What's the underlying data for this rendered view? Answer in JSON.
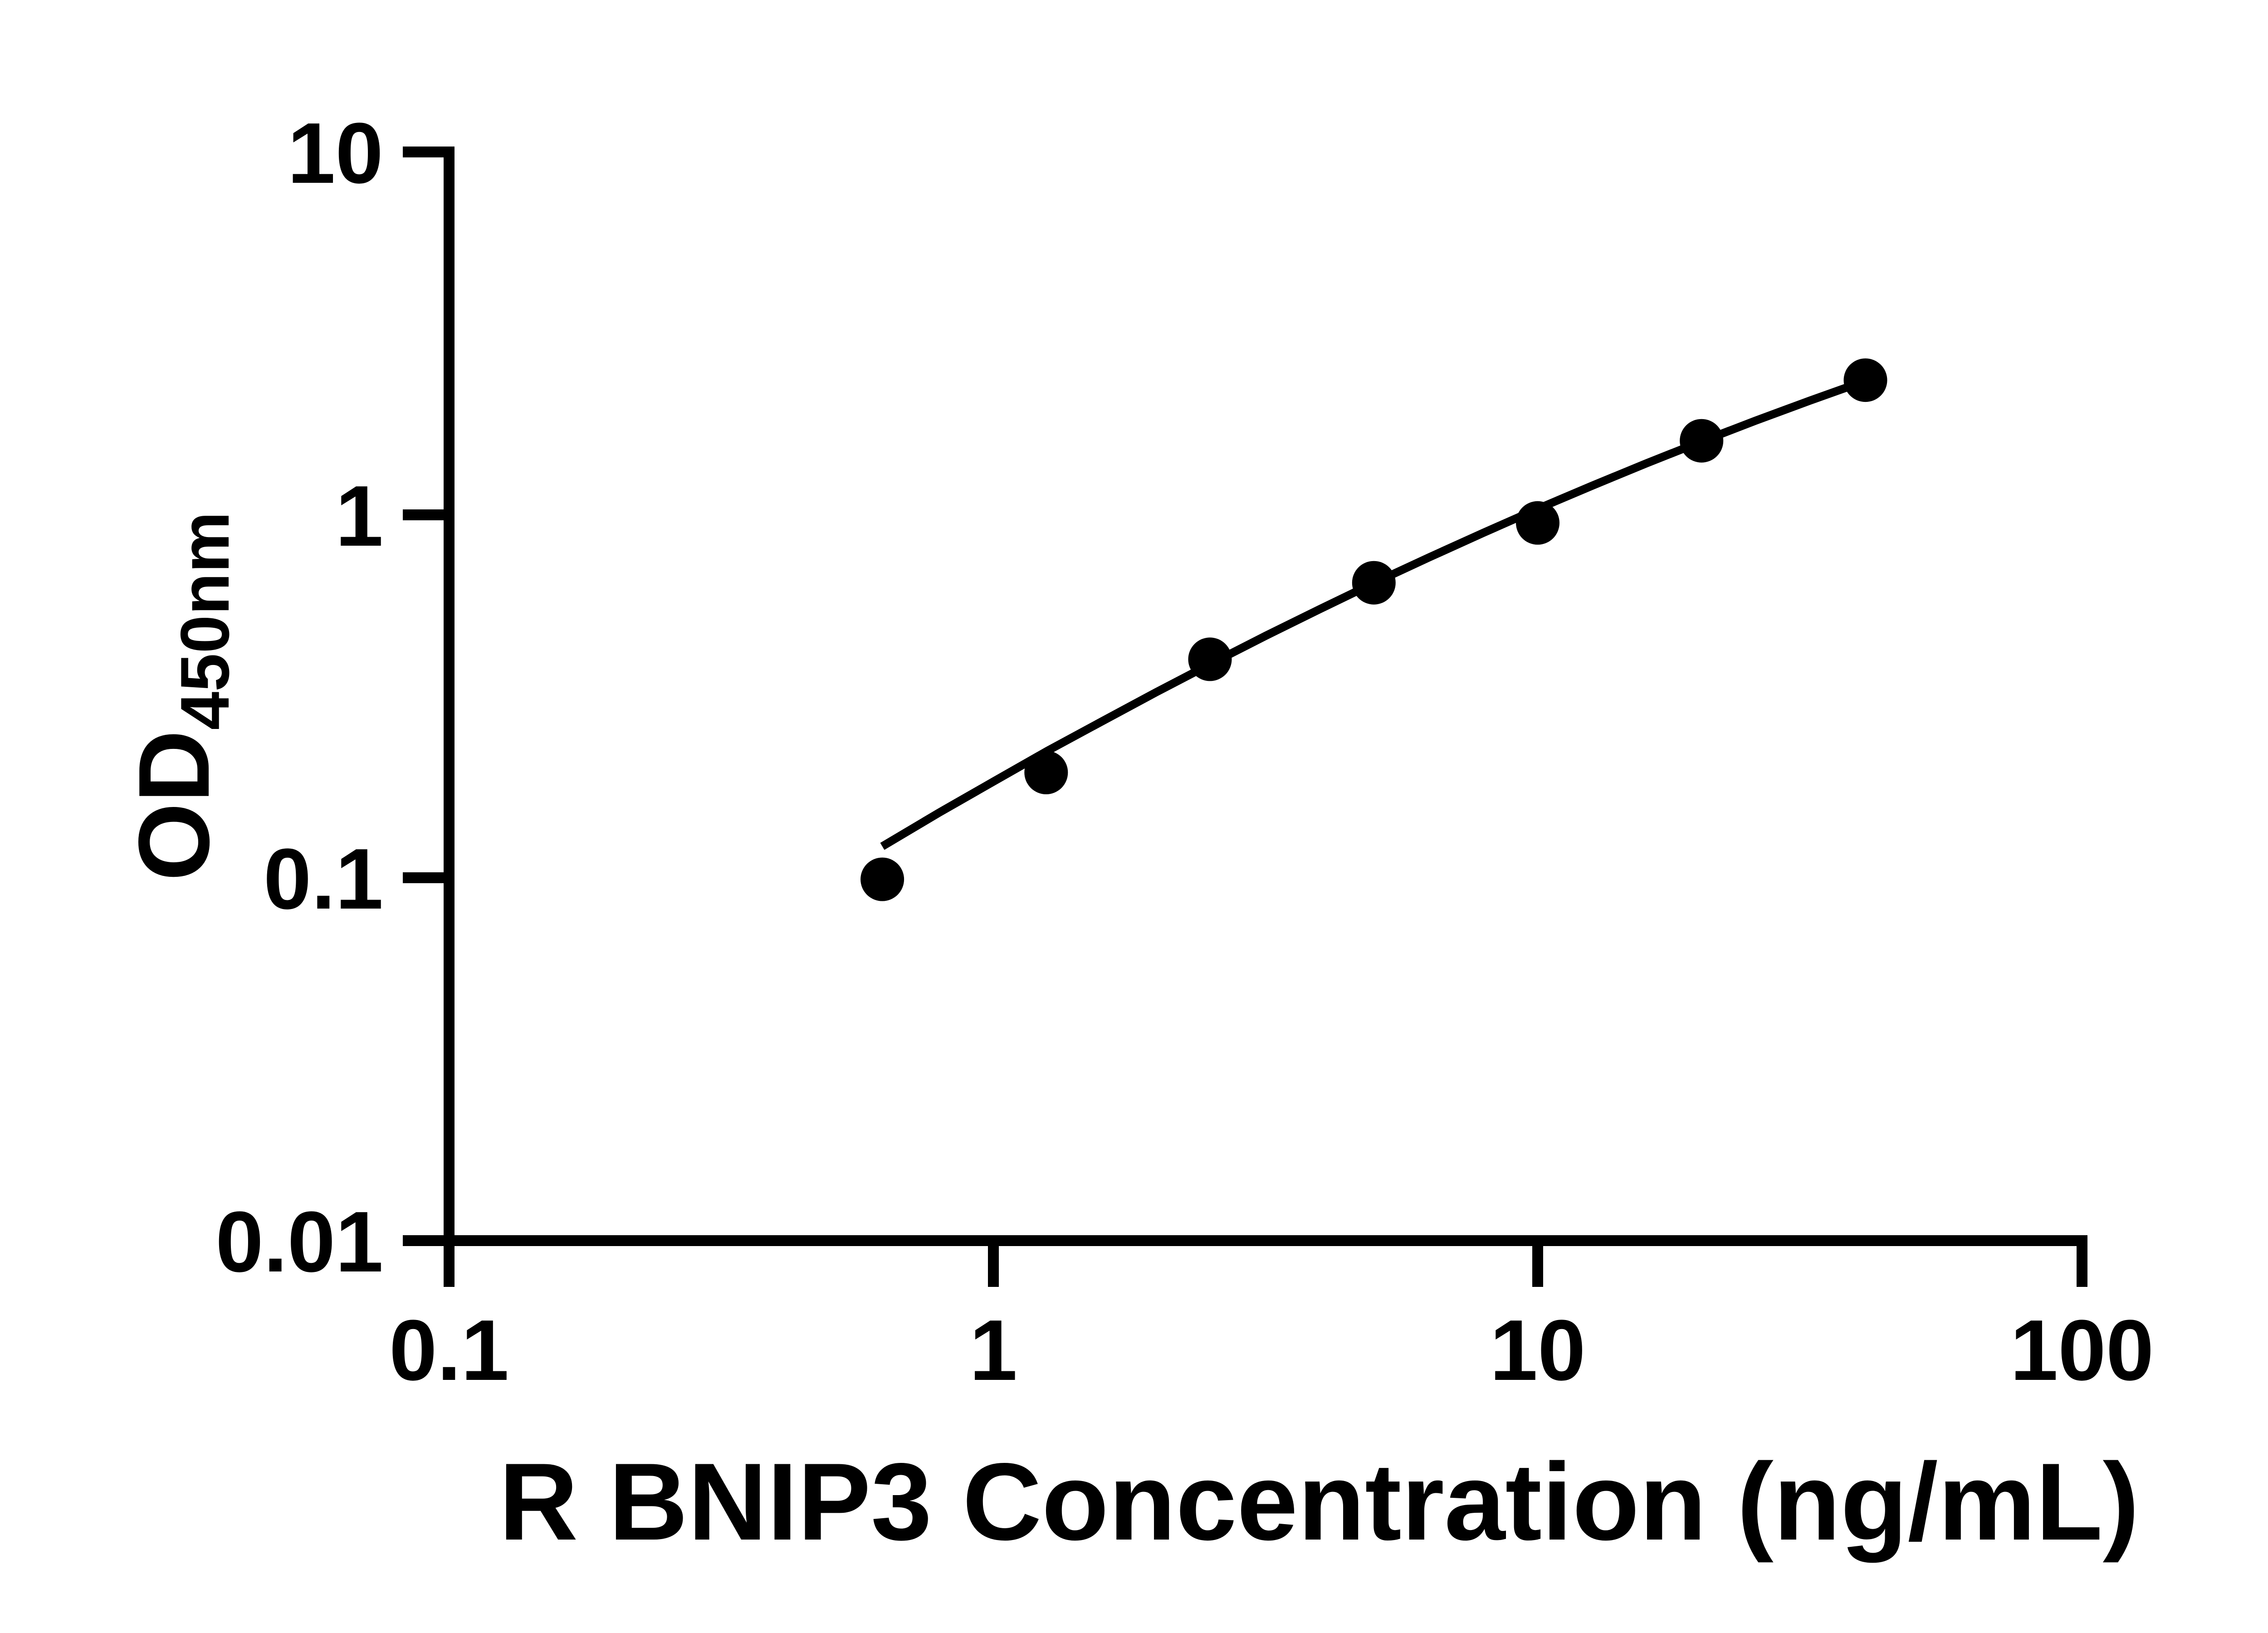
{
  "figure": {
    "background_color": "#ffffff",
    "ink_color": "#000000"
  },
  "chart_data": {
    "type": "scatter",
    "title": "",
    "xlabel": "R BNIP3 Concentration (ng/mL)",
    "ylabel_main": "OD",
    "ylabel_sub": "450nm",
    "x_scale": "log",
    "y_scale": "log",
    "xlim": [
      0.1,
      100
    ],
    "ylim": [
      0.01,
      10
    ],
    "x_ticks": [
      0.1,
      1,
      10,
      100
    ],
    "x_tick_labels": [
      "0.1",
      "1",
      "10",
      "100"
    ],
    "y_ticks": [
      0.01,
      0.1,
      1,
      10
    ],
    "y_tick_labels": [
      "0.01",
      "0.1",
      "1",
      "10"
    ],
    "grid": false,
    "legend_position": "none",
    "marker_color": "#000000",
    "line_color": "#000000",
    "series": [
      {
        "name": "standard-points",
        "kind": "scatter",
        "marker": "filled-circle",
        "points": [
          [
            0.625,
            0.099
          ],
          [
            1.25,
            0.195
          ],
          [
            2.5,
            0.4
          ],
          [
            5,
            0.65
          ],
          [
            10,
            0.95
          ],
          [
            20,
            1.6
          ],
          [
            40,
            2.35
          ]
        ]
      },
      {
        "name": "fit-curve",
        "kind": "line",
        "points": [
          [
            0.625,
            0.122
          ],
          [
            0.794,
            0.151
          ],
          [
            1.0,
            0.184
          ],
          [
            1.259,
            0.224
          ],
          [
            1.585,
            0.27
          ],
          [
            1.995,
            0.325
          ],
          [
            2.512,
            0.389
          ],
          [
            3.162,
            0.464
          ],
          [
            3.981,
            0.55
          ],
          [
            5.012,
            0.65
          ],
          [
            6.31,
            0.763
          ],
          [
            7.943,
            0.892
          ],
          [
            10.0,
            1.039
          ],
          [
            12.59,
            1.203
          ],
          [
            15.85,
            1.387
          ],
          [
            19.95,
            1.591
          ],
          [
            25.12,
            1.817
          ],
          [
            31.62,
            2.064
          ],
          [
            39.9,
            2.338
          ]
        ]
      }
    ]
  }
}
